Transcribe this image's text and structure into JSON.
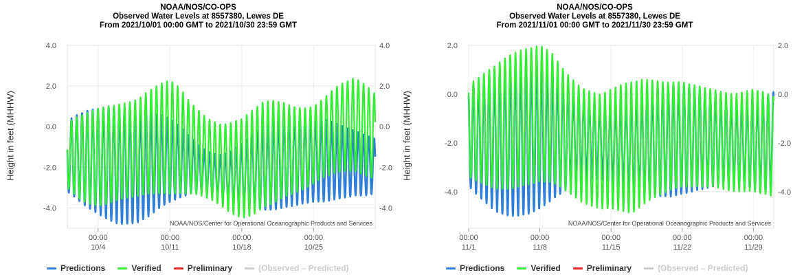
{
  "legend": [
    {
      "name": "Predictions",
      "color": "#2f7ed8"
    },
    {
      "name": "Verified",
      "color": "#33ee33"
    },
    {
      "name": "Preliminary",
      "color": "#ee2222"
    },
    {
      "name": "(Observed – Predicted)",
      "color": "#cccccc",
      "disabled": true
    }
  ],
  "chart_data": [
    {
      "type": "line",
      "title": [
        "NOAA/NOS/CO-OPS",
        "Observed Water Levels at 8557380, Lewes DE",
        "From 2021/10/01 00:00 GMT to 2021/10/30 23:59 GMT"
      ],
      "ylabel": "Height in feet (MHHW)",
      "credit": "NOAA/NOS/Center for Operational Oceanographic Products and Services",
      "xlim": [
        0,
        30
      ],
      "ylim": [
        -5,
        4
      ],
      "yticks": [
        4.0,
        2.0,
        0.0,
        -2.0,
        -4.0
      ],
      "ytick_labels": [
        "4.0",
        "2.0",
        "0.0",
        "-2.0",
        "-4.0"
      ],
      "xticks": [
        {
          "day": 3,
          "time": "00:00",
          "date": "10/4"
        },
        {
          "day": 10,
          "time": "00:00",
          "date": "10/11"
        },
        {
          "day": 17,
          "time": "00:00",
          "date": "10/18"
        },
        {
          "day": 24,
          "time": "00:00",
          "date": "10/25"
        }
      ],
      "grid": true,
      "series": [
        {
          "name": "Predictions",
          "color": "#2f7ed8",
          "highs_by_day": [
            0.3,
            0.6,
            0.8,
            0.9,
            1.0,
            1.0,
            0.9,
            0.8,
            0.7,
            0.6,
            0.4,
            0.0,
            -0.5,
            -1.0,
            -1.3,
            -1.4,
            -1.2,
            -0.8,
            -0.4,
            0.0,
            0.3,
            0.5,
            0.6,
            0.6,
            0.5,
            0.4,
            0.2,
            0.0,
            -0.2,
            -0.4,
            -0.6
          ],
          "lows_by_day": [
            -3.2,
            -3.6,
            -4.0,
            -4.3,
            -4.6,
            -4.8,
            -4.8,
            -4.7,
            -4.4,
            -4.0,
            -3.7,
            -3.5,
            -3.3,
            -3.2,
            -3.3,
            -3.5,
            -3.7,
            -3.9,
            -4.0,
            -4.1,
            -4.1,
            -4.0,
            -3.9,
            -3.8,
            -3.7,
            -3.7,
            -3.6,
            -3.5,
            -3.4,
            -3.4,
            -3.3
          ]
        },
        {
          "name": "Verified",
          "color": "#33ee33",
          "highs_by_day": [
            0.2,
            0.5,
            0.7,
            0.9,
            1.0,
            1.1,
            1.2,
            1.4,
            1.8,
            2.1,
            2.3,
            1.9,
            1.2,
            0.7,
            0.3,
            0.1,
            0.2,
            0.4,
            0.8,
            1.2,
            1.3,
            1.2,
            1.0,
            0.9,
            1.0,
            1.4,
            1.9,
            2.2,
            2.4,
            2.1,
            1.6
          ],
          "lows_by_day": [
            -3.0,
            -3.5,
            -3.8,
            -3.9,
            -3.8,
            -3.6,
            -3.5,
            -3.4,
            -3.3,
            -3.3,
            -3.3,
            -3.3,
            -3.3,
            -3.4,
            -3.6,
            -3.9,
            -4.3,
            -4.5,
            -4.4,
            -4.0,
            -3.8,
            -3.5,
            -3.3,
            -3.1,
            -2.8,
            -2.5,
            -2.3,
            -2.2,
            -2.2,
            -2.4,
            -2.6
          ]
        },
        {
          "name": "Preliminary",
          "color": "#ee2222",
          "highs_by_day": [],
          "lows_by_day": []
        }
      ]
    },
    {
      "type": "line",
      "title": [
        "NOAA/NOS/CO-OPS",
        "Observed Water Levels at 8557380, Lewes DE",
        "From 2021/11/01 00:00 GMT to 2021/11/30 23:59 GMT"
      ],
      "ylabel": "Height in feet (MHHW)",
      "credit": "NOAA/NOS/Center for Operational Oceanographic Products and Services",
      "xlim": [
        0,
        30
      ],
      "ylim": [
        -5.5,
        2.0
      ],
      "yticks": [
        2.0,
        0.0,
        -2.0,
        -4.0
      ],
      "ytick_labels": [
        "2.0",
        "0.0",
        "-2.0",
        "-4.0"
      ],
      "xticks": [
        {
          "day": 0,
          "time": "00:00",
          "date": "11/1"
        },
        {
          "day": 7,
          "time": "00:00",
          "date": "11/8"
        },
        {
          "day": 14,
          "time": "00:00",
          "date": "11/15"
        },
        {
          "day": 21,
          "time": "00:00",
          "date": "11/22"
        },
        {
          "day": 28,
          "time": "00:00",
          "date": "11/29"
        }
      ],
      "grid": true,
      "series": [
        {
          "name": "Predictions",
          "color": "#2f7ed8",
          "highs_by_day": [
            0.3,
            0.5,
            0.8,
            1.0,
            1.1,
            1.2,
            1.2,
            1.1,
            0.9,
            0.6,
            0.3,
            0.0,
            -0.3,
            -0.5,
            -0.6,
            -0.5,
            -0.3,
            -0.1,
            0.1,
            0.3,
            0.4,
            0.4,
            0.3,
            0.2,
            0.0,
            -0.2,
            -0.4,
            -0.4,
            -0.3,
            -0.1,
            0.1
          ],
          "lows_by_day": [
            -3.8,
            -4.2,
            -4.6,
            -4.9,
            -5.0,
            -5.0,
            -4.9,
            -4.7,
            -4.4,
            -4.1,
            -3.8,
            -3.6,
            -3.5,
            -3.5,
            -3.6,
            -3.8,
            -4.0,
            -4.1,
            -4.2,
            -4.2,
            -4.2,
            -4.1,
            -4.0,
            -3.9,
            -3.8,
            -3.7,
            -3.7,
            -3.8,
            -3.9,
            -4.0,
            -4.1
          ]
        },
        {
          "name": "Verified",
          "color": "#33ee33",
          "highs_by_day": [
            0.4,
            0.7,
            1.0,
            1.3,
            1.6,
            1.8,
            1.9,
            2.0,
            1.8,
            1.2,
            0.7,
            0.3,
            0.1,
            0.0,
            0.2,
            0.4,
            0.5,
            0.6,
            0.6,
            0.5,
            0.5,
            0.5,
            0.4,
            0.3,
            0.2,
            0.1,
            0.0,
            0.1,
            0.2,
            0.1,
            -0.1
          ],
          "lows_by_day": [
            -3.4,
            -3.6,
            -3.8,
            -3.9,
            -3.9,
            -3.8,
            -3.7,
            -3.6,
            -3.6,
            -3.8,
            -4.1,
            -4.4,
            -4.6,
            -4.7,
            -4.7,
            -4.8,
            -4.9,
            -4.6,
            -4.3,
            -4.1,
            -3.9,
            -3.8,
            -3.8,
            -3.8,
            -3.8,
            -3.9,
            -4.0,
            -4.0,
            -4.0,
            -4.1,
            -4.2
          ]
        },
        {
          "name": "Preliminary",
          "color": "#ee2222",
          "highs_by_day": [],
          "lows_by_day": []
        }
      ]
    }
  ]
}
